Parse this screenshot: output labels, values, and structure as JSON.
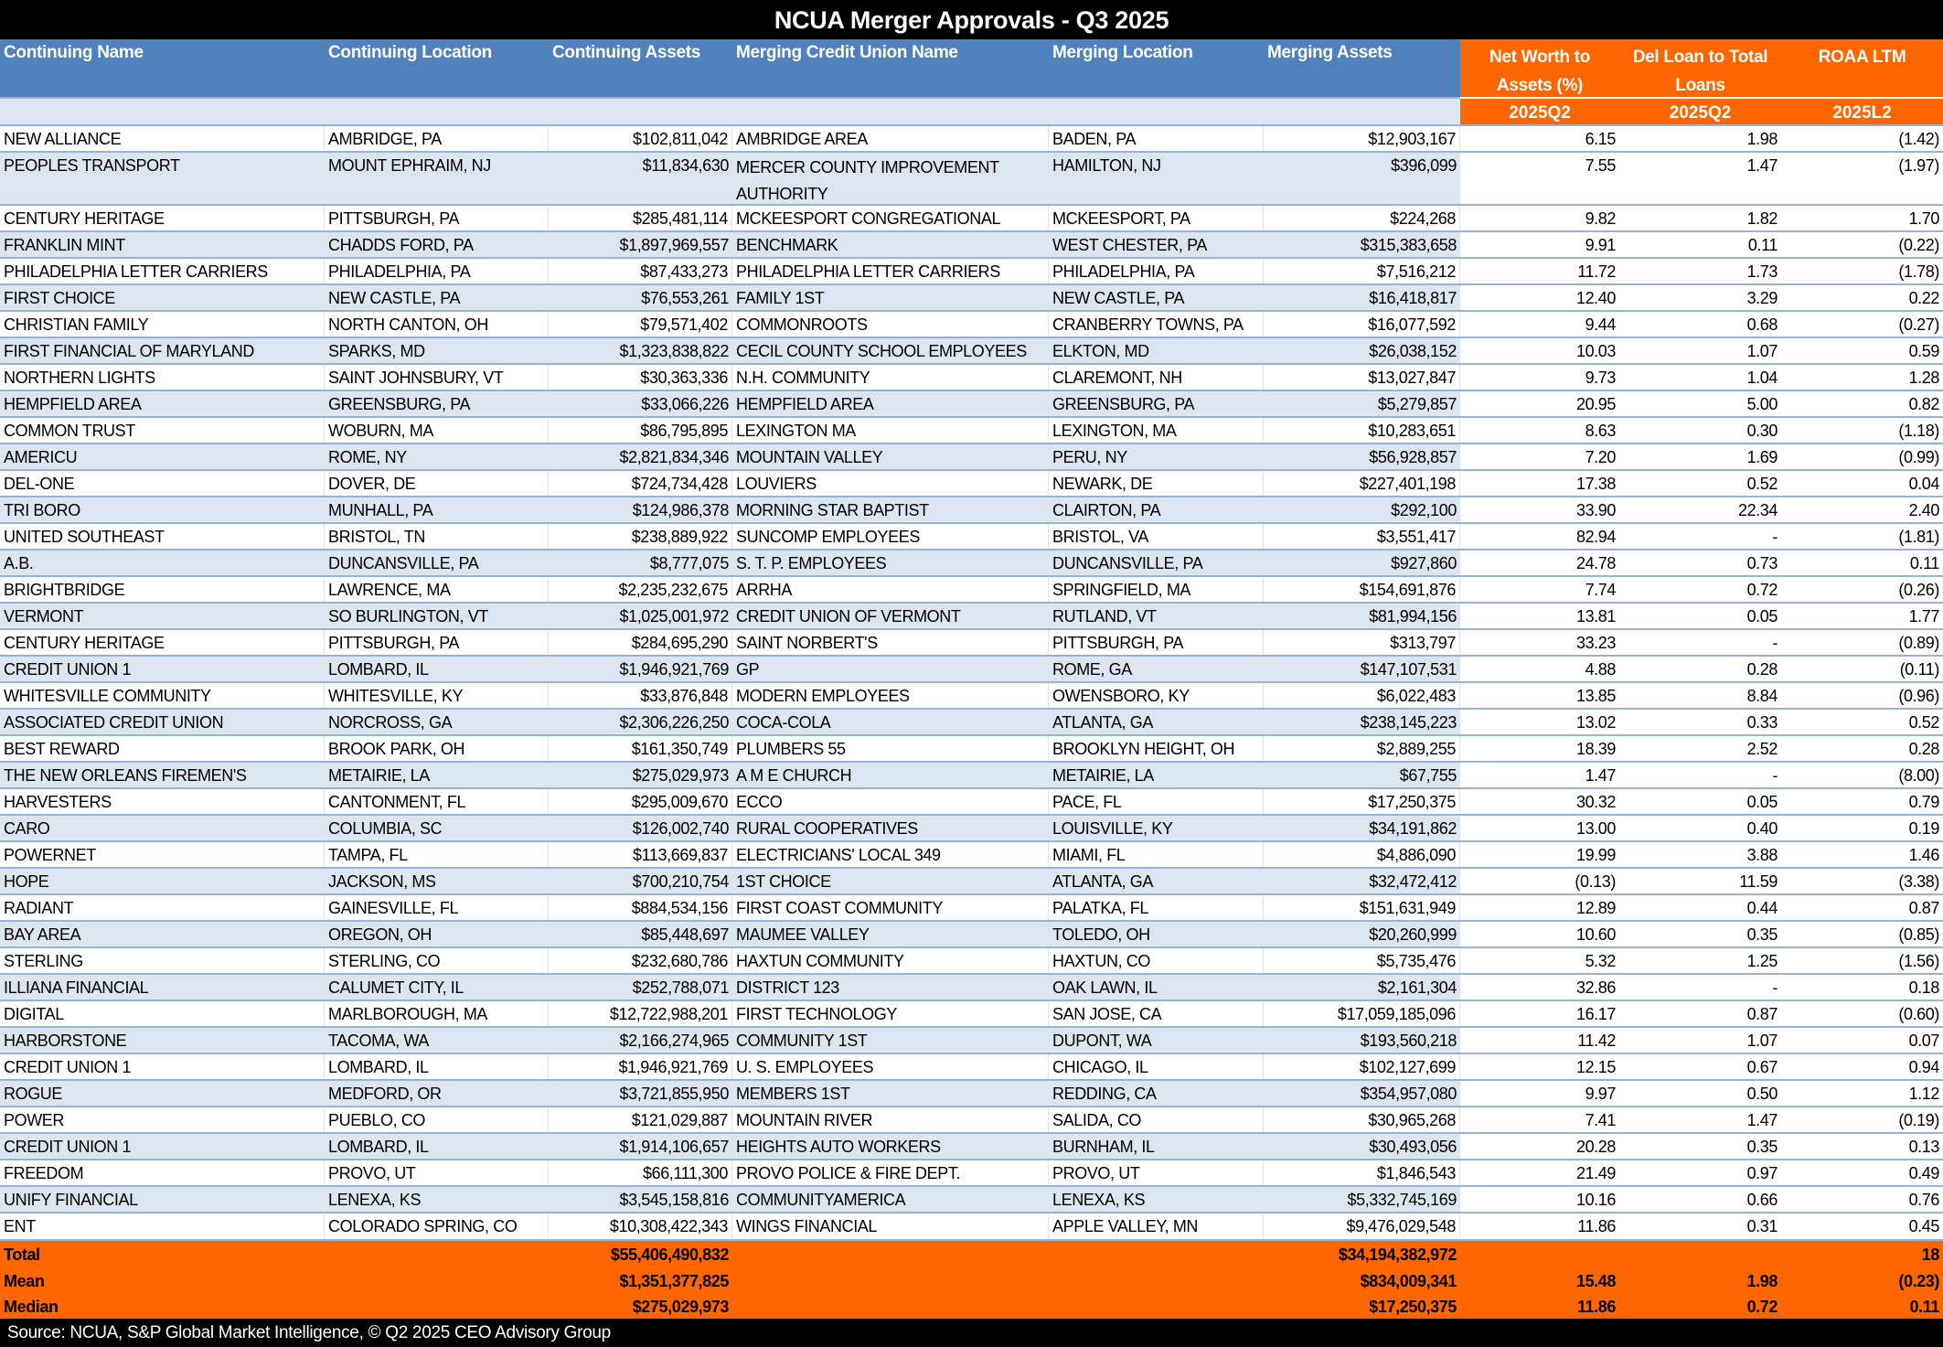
{
  "title": "NCUA Merger Approvals - Q3 2025",
  "colors": {
    "header_blue": "#4F81BD",
    "accent_orange": "#FF6600",
    "stripe": "#DCE6F1",
    "rule": "#95B3D7"
  },
  "headers": {
    "continuing_name": "Continuing Name",
    "continuing_location": "Continuing Location",
    "continuing_assets": "Continuing Assets",
    "merging_name": "Merging Credit Union Name",
    "merging_location": "Merging Location",
    "merging_assets": "Merging Assets",
    "net_worth": "Net Worth to Assets (%)",
    "del_loan": "Del Loan to Total Loans",
    "roaa": "ROAA LTM",
    "net_worth_period": "2025Q2",
    "del_loan_period": "2025Q2",
    "roaa_period": "2025L2"
  },
  "rows": [
    [
      "NEW ALLIANCE",
      "AMBRIDGE, PA",
      "$102,811,042",
      "AMBRIDGE AREA",
      "BADEN, PA",
      "$12,903,167",
      "6.15",
      "1.98",
      "(1.42)"
    ],
    [
      "PEOPLES TRANSPORT",
      "MOUNT EPHRAIM, NJ",
      "$11,834,630",
      "MERCER COUNTY IMPROVEMENT AUTHORITY",
      "HAMILTON, NJ",
      "$396,099",
      "7.55",
      "1.47",
      "(1.97)"
    ],
    [
      "CENTURY HERITAGE",
      "PITTSBURGH, PA",
      "$285,481,114",
      "MCKEESPORT CONGREGATIONAL",
      "MCKEESPORT, PA",
      "$224,268",
      "9.82",
      "1.82",
      "1.70"
    ],
    [
      "FRANKLIN MINT",
      "CHADDS FORD, PA",
      "$1,897,969,557",
      "BENCHMARK",
      "WEST CHESTER, PA",
      "$315,383,658",
      "9.91",
      "0.11",
      "(0.22)"
    ],
    [
      "PHILADELPHIA LETTER CARRIERS",
      "PHILADELPHIA, PA",
      "$87,433,273",
      "PHILADELPHIA LETTER CARRIERS",
      "PHILADELPHIA, PA",
      "$7,516,212",
      "11.72",
      "1.73",
      "(1.78)"
    ],
    [
      "FIRST CHOICE",
      "NEW CASTLE, PA",
      "$76,553,261",
      "FAMILY 1ST",
      "NEW CASTLE, PA",
      "$16,418,817",
      "12.40",
      "3.29",
      "0.22"
    ],
    [
      "CHRISTIAN FAMILY",
      "NORTH CANTON, OH",
      "$79,571,402",
      "COMMONROOTS",
      "CRANBERRY TOWNS, PA",
      "$16,077,592",
      "9.44",
      "0.68",
      "(0.27)"
    ],
    [
      "FIRST FINANCIAL OF MARYLAND",
      "SPARKS, MD",
      "$1,323,838,822",
      "CECIL COUNTY SCHOOL EMPLOYEES",
      "ELKTON, MD",
      "$26,038,152",
      "10.03",
      "1.07",
      "0.59"
    ],
    [
      "NORTHERN LIGHTS",
      "SAINT JOHNSBURY, VT",
      "$30,363,336",
      "N.H. COMMUNITY",
      "CLAREMONT, NH",
      "$13,027,847",
      "9.73",
      "1.04",
      "1.28"
    ],
    [
      "HEMPFIELD AREA",
      "GREENSBURG, PA",
      "$33,066,226",
      "HEMPFIELD AREA",
      "GREENSBURG, PA",
      "$5,279,857",
      "20.95",
      "5.00",
      "0.82"
    ],
    [
      "COMMON TRUST",
      "WOBURN, MA",
      "$86,795,895",
      "LEXINGTON MA",
      "LEXINGTON, MA",
      "$10,283,651",
      "8.63",
      "0.30",
      "(1.18)"
    ],
    [
      "AMERICU",
      "ROME, NY",
      "$2,821,834,346",
      "MOUNTAIN VALLEY",
      "PERU, NY",
      "$56,928,857",
      "7.20",
      "1.69",
      "(0.99)"
    ],
    [
      "DEL-ONE",
      "DOVER, DE",
      "$724,734,428",
      "LOUVIERS",
      "NEWARK, DE",
      "$227,401,198",
      "17.38",
      "0.52",
      "0.04"
    ],
    [
      "TRI BORO",
      "MUNHALL, PA",
      "$124,986,378",
      "MORNING STAR BAPTIST",
      "CLAIRTON, PA",
      "$292,100",
      "33.90",
      "22.34",
      "2.40"
    ],
    [
      "UNITED SOUTHEAST",
      "BRISTOL, TN",
      "$238,889,922",
      "SUNCOMP EMPLOYEES",
      "BRISTOL, VA",
      "$3,551,417",
      "82.94",
      "-",
      "(1.81)"
    ],
    [
      "A.B.",
      "DUNCANSVILLE, PA",
      "$8,777,075",
      "S. T. P. EMPLOYEES",
      "DUNCANSVILLE, PA",
      "$927,860",
      "24.78",
      "0.73",
      "0.11"
    ],
    [
      "BRIGHTBRIDGE",
      "LAWRENCE, MA",
      "$2,235,232,675",
      "ARRHA",
      "SPRINGFIELD, MA",
      "$154,691,876",
      "7.74",
      "0.72",
      "(0.26)"
    ],
    [
      "VERMONT",
      "SO BURLINGTON, VT",
      "$1,025,001,972",
      "CREDIT UNION OF VERMONT",
      "RUTLAND, VT",
      "$81,994,156",
      "13.81",
      "0.05",
      "1.77"
    ],
    [
      "CENTURY HERITAGE",
      "PITTSBURGH, PA",
      "$284,695,290",
      "SAINT NORBERT'S",
      "PITTSBURGH, PA",
      "$313,797",
      "33.23",
      "-",
      "(0.89)"
    ],
    [
      "CREDIT UNION 1",
      "LOMBARD, IL",
      "$1,946,921,769",
      "GP",
      "ROME, GA",
      "$147,107,531",
      "4.88",
      "0.28",
      "(0.11)"
    ],
    [
      "WHITESVILLE COMMUNITY",
      "WHITESVILLE, KY",
      "$33,876,848",
      "MODERN EMPLOYEES",
      "OWENSBORO, KY",
      "$6,022,483",
      "13.85",
      "8.84",
      "(0.96)"
    ],
    [
      "ASSOCIATED CREDIT UNION",
      "NORCROSS, GA",
      "$2,306,226,250",
      "COCA-COLA",
      "ATLANTA, GA",
      "$238,145,223",
      "13.02",
      "0.33",
      "0.52"
    ],
    [
      "BEST REWARD",
      "BROOK PARK, OH",
      "$161,350,749",
      "PLUMBERS 55",
      "BROOKLYN HEIGHT, OH",
      "$2,889,255",
      "18.39",
      "2.52",
      "0.28"
    ],
    [
      "THE NEW ORLEANS FIREMEN'S",
      "METAIRIE, LA",
      "$275,029,973",
      "A M E CHURCH",
      "METAIRIE, LA",
      "$67,755",
      "1.47",
      "-",
      "(8.00)"
    ],
    [
      "HARVESTERS",
      "CANTONMENT, FL",
      "$295,009,670",
      "ECCO",
      "PACE, FL",
      "$17,250,375",
      "30.32",
      "0.05",
      "0.79"
    ],
    [
      "CARO",
      "COLUMBIA, SC",
      "$126,002,740",
      "RURAL COOPERATIVES",
      "LOUISVILLE, KY",
      "$34,191,862",
      "13.00",
      "0.40",
      "0.19"
    ],
    [
      "POWERNET",
      "TAMPA, FL",
      "$113,669,837",
      "ELECTRICIANS' LOCAL 349",
      "MIAMI, FL",
      "$4,886,090",
      "19.99",
      "3.88",
      "1.46"
    ],
    [
      "HOPE",
      "JACKSON, MS",
      "$700,210,754",
      "1ST CHOICE",
      "ATLANTA, GA",
      "$32,472,412",
      "(0.13)",
      "11.59",
      "(3.38)"
    ],
    [
      "RADIANT",
      "GAINESVILLE, FL",
      "$884,534,156",
      "FIRST COAST COMMUNITY",
      "PALATKA, FL",
      "$151,631,949",
      "12.89",
      "0.44",
      "0.87"
    ],
    [
      "BAY AREA",
      "OREGON, OH",
      "$85,448,697",
      "MAUMEE VALLEY",
      "TOLEDO, OH",
      "$20,260,999",
      "10.60",
      "0.35",
      "(0.85)"
    ],
    [
      "STERLING",
      "STERLING, CO",
      "$232,680,786",
      "HAXTUN COMMUNITY",
      "HAXTUN, CO",
      "$5,735,476",
      "5.32",
      "1.25",
      "(1.56)"
    ],
    [
      "ILLIANA FINANCIAL",
      "CALUMET CITY, IL",
      "$252,788,071",
      "DISTRICT 123",
      "OAK LAWN, IL",
      "$2,161,304",
      "32.86",
      "-",
      "0.18"
    ],
    [
      "DIGITAL",
      "MARLBOROUGH, MA",
      "$12,722,988,201",
      "FIRST TECHNOLOGY",
      "SAN JOSE, CA",
      "$17,059,185,096",
      "16.17",
      "0.87",
      "(0.60)"
    ],
    [
      "HARBORSTONE",
      "TACOMA, WA",
      "$2,166,274,965",
      "COMMUNITY 1ST",
      "DUPONT, WA",
      "$193,560,218",
      "11.42",
      "1.07",
      "0.07"
    ],
    [
      "CREDIT UNION 1",
      "LOMBARD, IL",
      "$1,946,921,769",
      "U. S. EMPLOYEES",
      "CHICAGO, IL",
      "$102,127,699",
      "12.15",
      "0.67",
      "0.94"
    ],
    [
      "ROGUE",
      "MEDFORD, OR",
      "$3,721,855,950",
      "MEMBERS 1ST",
      "REDDING, CA",
      "$354,957,080",
      "9.97",
      "0.50",
      "1.12"
    ],
    [
      "POWER",
      "PUEBLO, CO",
      "$121,029,887",
      "MOUNTAIN RIVER",
      "SALIDA, CO",
      "$30,965,268",
      "7.41",
      "1.47",
      "(0.19)"
    ],
    [
      "CREDIT UNION 1",
      "LOMBARD, IL",
      "$1,914,106,657",
      "HEIGHTS AUTO WORKERS",
      "BURNHAM, IL",
      "$30,493,056",
      "20.28",
      "0.35",
      "0.13"
    ],
    [
      "FREEDOM",
      "PROVO, UT",
      "$66,111,300",
      "PROVO POLICE & FIRE DEPT.",
      "PROVO, UT",
      "$1,846,543",
      "21.49",
      "0.97",
      "0.49"
    ],
    [
      "UNIFY FINANCIAL",
      "LENEXA, KS",
      "$3,545,158,816",
      "COMMUNITYAMERICA",
      "LENEXA, KS",
      "$5,332,745,169",
      "10.16",
      "0.66",
      "0.76"
    ],
    [
      "ENT",
      "COLORADO SPRING, CO",
      "$10,308,422,343",
      "WINGS FINANCIAL",
      "APPLE VALLEY, MN",
      "$9,476,029,548",
      "11.86",
      "0.31",
      "0.45"
    ]
  ],
  "summary": [
    {
      "label": "Total",
      "continuing_assets": "$55,406,490,832",
      "merging_assets": "$34,194,382,972",
      "net_worth": "",
      "del_loan": "",
      "roaa": "18"
    },
    {
      "label": "Mean",
      "continuing_assets": "$1,351,377,825",
      "merging_assets": "$834,009,341",
      "net_worth": "15.48",
      "del_loan": "1.98",
      "roaa": "(0.23)"
    },
    {
      "label": "Median",
      "continuing_assets": "$275,029,973",
      "merging_assets": "$17,250,375",
      "net_worth": "11.86",
      "del_loan": "0.72",
      "roaa": "0.11"
    }
  ],
  "footer": "Source: NCUA, S&P Global Market Intelligence,  © Q2 2025 CEO Advisory Group"
}
